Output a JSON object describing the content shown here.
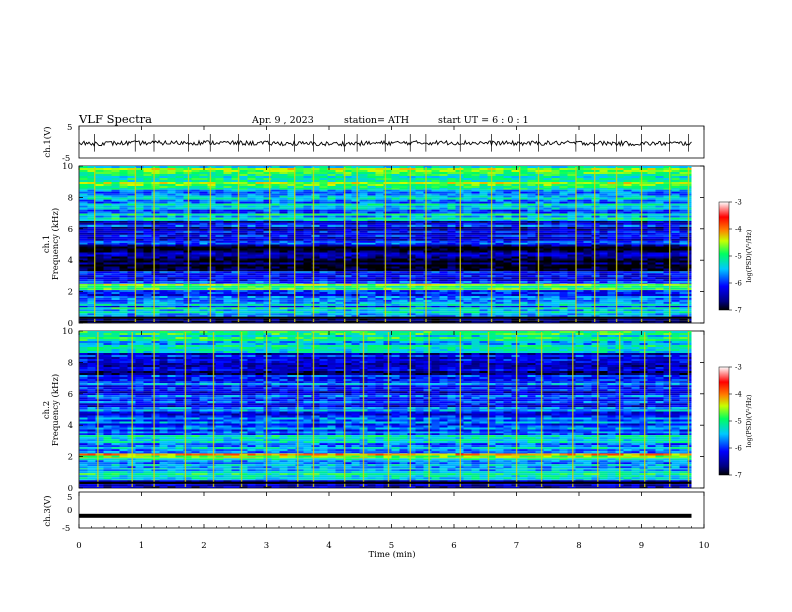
{
  "header": {
    "title": "VLF  Spectra",
    "date": "Apr. 9  , 2023",
    "station": "station= ATH",
    "start_ut": "start  UT  =    6  : 0  : 1"
  },
  "chart_data": [
    {
      "type": "line",
      "panel": "ch1-waveform",
      "ylabel": "ch.1(V)",
      "ylim": [
        -5,
        5
      ],
      "yticks": [
        "5",
        "-5"
      ],
      "xlim": [
        0,
        10
      ],
      "x": [
        0,
        1,
        2,
        3,
        4,
        5,
        6,
        7,
        8,
        9,
        9.8
      ],
      "values": [
        -0.5,
        -0.3,
        -0.2,
        -0.4,
        -0.6,
        -0.3,
        -0.2,
        -0.4,
        -0.3,
        -0.5,
        -0.4
      ]
    },
    {
      "type": "heatmap",
      "panel": "ch1-spectrogram",
      "ylabel": "ch.1\nFrequency  (kHz)",
      "ylabel_lines": [
        "ch.1",
        "Frequency  (kHz)"
      ],
      "xlim": [
        0,
        10
      ],
      "data_end_min": 9.8,
      "ylim": [
        0,
        10
      ],
      "yticks": [
        "0",
        "2",
        "4",
        "6",
        "8",
        "10"
      ],
      "colorbar": {
        "label": "log(PSD)(V²/Hz)",
        "ticks": [
          "-3",
          "-4",
          "-5",
          "-6",
          "-7"
        ],
        "range": [
          -7,
          -3
        ]
      },
      "bands_khz": [
        {
          "from": 0,
          "to": 0.4,
          "log_psd": -6.8
        },
        {
          "from": 0.4,
          "to": 1.0,
          "log_psd": -5.4
        },
        {
          "from": 1.0,
          "to": 1.6,
          "log_psd": -5.7
        },
        {
          "from": 1.6,
          "to": 2.1,
          "log_psd": -5.8
        },
        {
          "from": 2.1,
          "to": 2.5,
          "log_psd": -4.9
        },
        {
          "from": 2.5,
          "to": 3.3,
          "log_psd": -6.1
        },
        {
          "from": 3.3,
          "to": 5.0,
          "log_psd": -6.7
        },
        {
          "from": 5.0,
          "to": 6.5,
          "log_psd": -6.2
        },
        {
          "from": 6.5,
          "to": 8.5,
          "log_psd": -5.5
        },
        {
          "from": 8.5,
          "to": 10.0,
          "log_psd": -4.9
        }
      ],
      "sferic_times_min": [
        0.25,
        0.9,
        1.2,
        1.75,
        2.1,
        2.55,
        3.05,
        3.45,
        3.75,
        4.25,
        4.45,
        4.9,
        5.3,
        5.55,
        6.1,
        6.6,
        7.05,
        7.35,
        7.95,
        8.25,
        8.6,
        9.0,
        9.45,
        9.75
      ]
    },
    {
      "type": "heatmap",
      "panel": "ch2-spectrogram",
      "ylabel": "ch.2\nFrequency  (kHz)",
      "ylabel_lines": [
        "ch.2",
        "Frequency  (kHz)"
      ],
      "xlim": [
        0,
        10
      ],
      "data_end_min": 9.8,
      "ylim": [
        0,
        10
      ],
      "yticks": [
        "0",
        "2",
        "4",
        "6",
        "8",
        "10"
      ],
      "colorbar": {
        "label": "log(PSD)(V²/Hz)",
        "ticks": [
          "-3",
          "-4",
          "-5",
          "-6",
          "-7"
        ],
        "range": [
          -7,
          -3
        ]
      },
      "bands_khz": [
        {
          "from": 0,
          "to": 0.5,
          "log_psd": -6.7
        },
        {
          "from": 0.5,
          "to": 1.2,
          "log_psd": -5.3
        },
        {
          "from": 1.2,
          "to": 1.9,
          "log_psd": -5.6
        },
        {
          "from": 1.9,
          "to": 2.2,
          "log_psd": -4.4
        },
        {
          "from": 2.2,
          "to": 3.5,
          "log_psd": -5.6
        },
        {
          "from": 3.5,
          "to": 5.0,
          "log_psd": -5.9
        },
        {
          "from": 5.0,
          "to": 6.8,
          "log_psd": -6.0
        },
        {
          "from": 6.8,
          "to": 8.6,
          "log_psd": -6.3
        },
        {
          "from": 8.6,
          "to": 10.0,
          "log_psd": -5.3
        }
      ],
      "sferic_times_min": [
        0.3,
        0.85,
        1.2,
        1.7,
        2.15,
        2.6,
        3.0,
        3.5,
        3.75,
        4.25,
        4.55,
        4.95,
        5.3,
        5.6,
        6.1,
        6.55,
        7.0,
        7.4,
        7.9,
        8.3,
        8.65,
        9.05,
        9.45,
        9.75
      ]
    },
    {
      "type": "line",
      "panel": "ch3-waveform",
      "ylabel": "ch.3(V)",
      "ylim": [
        -5,
        5
      ],
      "yticks": [
        "5",
        "0",
        "-5"
      ],
      "xlim": [
        0,
        10
      ],
      "x": [
        0,
        9.8
      ],
      "values": [
        -1.6,
        -1.6
      ],
      "xlabel": "Time  (min)",
      "xticks": [
        "0",
        "1",
        "2",
        "3",
        "4",
        "5",
        "6",
        "7",
        "8",
        "9",
        "10"
      ]
    }
  ]
}
